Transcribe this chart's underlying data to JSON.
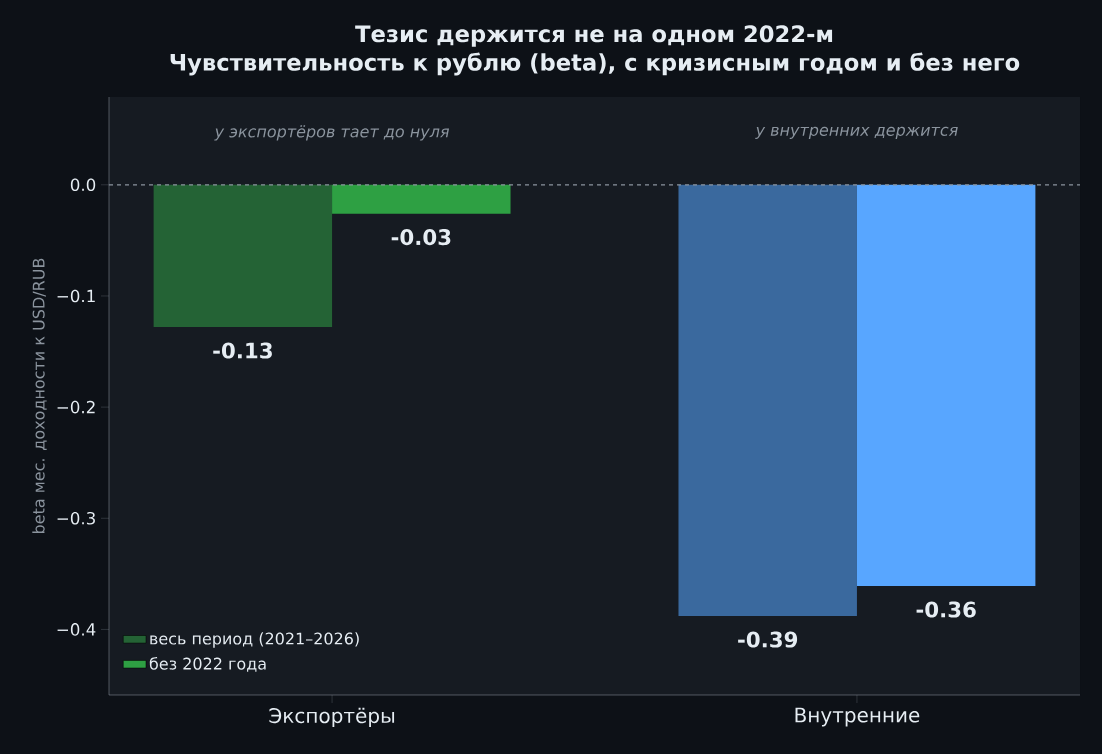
{
  "chart_data": {
    "type": "bar",
    "title": "Тезис держится не на одном 2022-м",
    "subtitle": "Чувствительность к рублю (beta), с кризисным годом и без него",
    "ylabel": "beta мес. доходности к USD/RUB",
    "categories": [
      "Экспортёры",
      "Внутренние"
    ],
    "series": [
      {
        "name": "весь период (2021–2026)",
        "colors": [
          "#246335",
          "#3a699e"
        ],
        "values": [
          -0.128,
          -0.388
        ],
        "value_labels": [
          "-0.13",
          "-0.39"
        ]
      },
      {
        "name": "без 2022 года",
        "colors": [
          "#2ea043",
          "#58a6ff"
        ],
        "values": [
          -0.026,
          -0.361
        ],
        "value_labels": [
          "-0.03",
          "-0.36"
        ]
      }
    ],
    "ylim": [
      -0.459,
      0.079
    ],
    "yticks": [
      {
        "value": 0,
        "label": "0.0"
      },
      {
        "value": -0.1,
        "label": "−0.1"
      },
      {
        "value": -0.2,
        "label": "−0.2"
      },
      {
        "value": -0.3,
        "label": "−0.3"
      },
      {
        "value": -0.4,
        "label": "−0.4"
      }
    ],
    "ref_lines": [
      {
        "axis": "y",
        "value": 0,
        "color": "#8b949e",
        "line_style": "dashed"
      }
    ],
    "annotations": [
      "у экспортёров тает до нуля",
      "у внутренних держится"
    ],
    "legend": "bottom left"
  }
}
